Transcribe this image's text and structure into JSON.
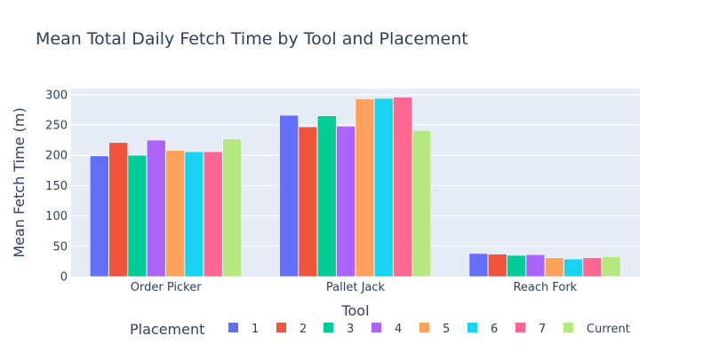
{
  "chart_data": {
    "type": "bar",
    "title": "Mean Total Daily Fetch Time by Tool and Placement",
    "xlabel": "Tool",
    "ylabel": "Mean Fetch Time (m)",
    "categories": [
      "Order Picker",
      "Pallet Jack",
      "Reach Fork"
    ],
    "ylim": [
      0,
      310
    ],
    "yticks": [
      0,
      50,
      100,
      150,
      200,
      250,
      300
    ],
    "grid": true,
    "legend_title": "Placement",
    "legend_position": "bottom",
    "series": [
      {
        "name": "1",
        "color": "#636efa",
        "values": [
          199,
          266,
          38
        ]
      },
      {
        "name": "2",
        "color": "#EF553B",
        "values": [
          221,
          247,
          37
        ]
      },
      {
        "name": "3",
        "color": "#00cc96",
        "values": [
          200,
          265,
          35
        ]
      },
      {
        "name": "4",
        "color": "#ab63fa",
        "values": [
          225,
          248,
          36
        ]
      },
      {
        "name": "5",
        "color": "#FFA15A",
        "values": [
          208,
          293,
          31
        ]
      },
      {
        "name": "6",
        "color": "#19d3f3",
        "values": [
          206,
          294,
          29
        ]
      },
      {
        "name": "7",
        "color": "#FF6692",
        "values": [
          206,
          296,
          31
        ]
      },
      {
        "name": "Current",
        "color": "#B6E880",
        "values": [
          227,
          241,
          33
        ]
      }
    ]
  }
}
